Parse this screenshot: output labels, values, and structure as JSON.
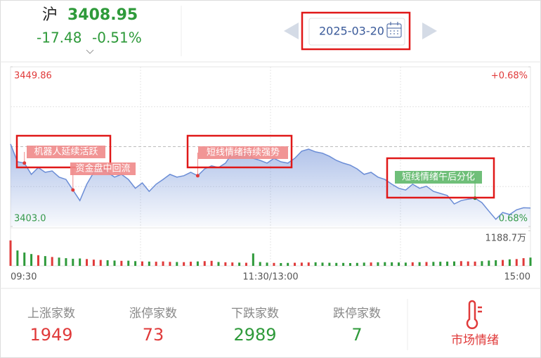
{
  "header": {
    "market": "沪",
    "price": 3408.95,
    "change": -17.48,
    "change_pct": "-0.51%",
    "date": "2025-03-20"
  },
  "chart_data": {
    "type": "line",
    "color": "#6b8dd6",
    "values": [
      3427.2,
      3422.0,
      3421.6,
      3418.3,
      3420.3,
      3418.9,
      3419.3,
      3417.5,
      3416.8,
      3413.7,
      3410.6,
      3415.4,
      3418.9,
      3420.3,
      3418.9,
      3417.5,
      3418.3,
      3416.8,
      3414.2,
      3415.8,
      3413.3,
      3415.4,
      3416.8,
      3418.3,
      3417.5,
      3417.9,
      3418.9,
      3417.9,
      3419.9,
      3420.8,
      3420.3,
      3421.6,
      3424.5,
      3423.6,
      3425.1,
      3423.0,
      3422.4,
      3421.6,
      3423.0,
      3422.0,
      3421.6,
      3423.0,
      3425.1,
      3425.7,
      3424.9,
      3424.5,
      3423.6,
      3422.4,
      3421.6,
      3421.0,
      3419.9,
      3418.3,
      3418.9,
      3417.5,
      3416.8,
      3415.4,
      3414.2,
      3413.7,
      3415.4,
      3414.2,
      3414.8,
      3413.3,
      3412.7,
      3412.1,
      3409.6,
      3410.6,
      3411.0,
      3411.3,
      3410.0,
      3407.5,
      3405.1,
      3407.1,
      3406.5,
      3407.9,
      3408.5,
      3408.4
    ],
    "ylim": [
      3403,
      3449.86
    ],
    "yticks": [
      3449.86,
      {
        "value": 3403,
        "label": "3403.0"
      }
    ],
    "y2lim": [
      -0.68,
      0.68
    ],
    "y2ticks": [
      {
        "value": 0.68,
        "label": "+0.68%"
      },
      {
        "value": -0.68,
        "label": "0.68%"
      }
    ],
    "x_labels": [
      "09:30",
      "11:30/13:00",
      "15:00"
    ],
    "annotations": [
      {
        "text": "机器人延续活跃",
        "color": "#f08a8a"
      },
      {
        "text": "资金盘中回流",
        "color": "#f08a8a"
      },
      {
        "text": "短线情绪持续强势",
        "color": "#f08a8a"
      },
      {
        "text": "短线情绪午后分化",
        "color": "#5fb86a"
      }
    ],
    "volume": {
      "values": [
        860,
        520,
        450,
        400,
        360,
        330,
        300,
        280,
        260,
        240,
        250,
        230,
        210,
        200,
        190,
        180,
        170,
        175,
        160,
        150,
        145,
        140,
        150,
        135,
        130,
        125,
        140,
        150,
        160,
        170,
        130,
        120,
        115,
        110,
        105,
        420,
        130,
        110,
        100,
        95,
        100,
        105,
        110,
        115,
        120,
        110,
        105,
        100,
        100,
        95,
        100,
        110,
        115,
        120,
        125,
        120,
        115,
        110,
        120,
        125,
        130,
        135,
        140,
        145,
        150,
        160,
        150,
        145,
        160,
        180,
        190,
        200,
        220,
        230,
        260,
        280
      ],
      "ylim": [
        0,
        1188.7
      ],
      "yticks": [
        {
          "value": 1188.7,
          "label": "1188.7万"
        }
      ],
      "up_color": "#e03a3a",
      "down_color": "#2e9a3a"
    }
  },
  "stats": [
    {
      "label": "上涨家数",
      "value": 1949,
      "color": "#e03a3a"
    },
    {
      "label": "涨停家数",
      "value": 73,
      "color": "#e03a3a"
    },
    {
      "label": "下跌家数",
      "value": 2989,
      "color": "#2e9a3a"
    },
    {
      "label": "跌停家数",
      "value": 7,
      "color": "#2e9a3a"
    }
  ],
  "sentiment": "市场情绪"
}
